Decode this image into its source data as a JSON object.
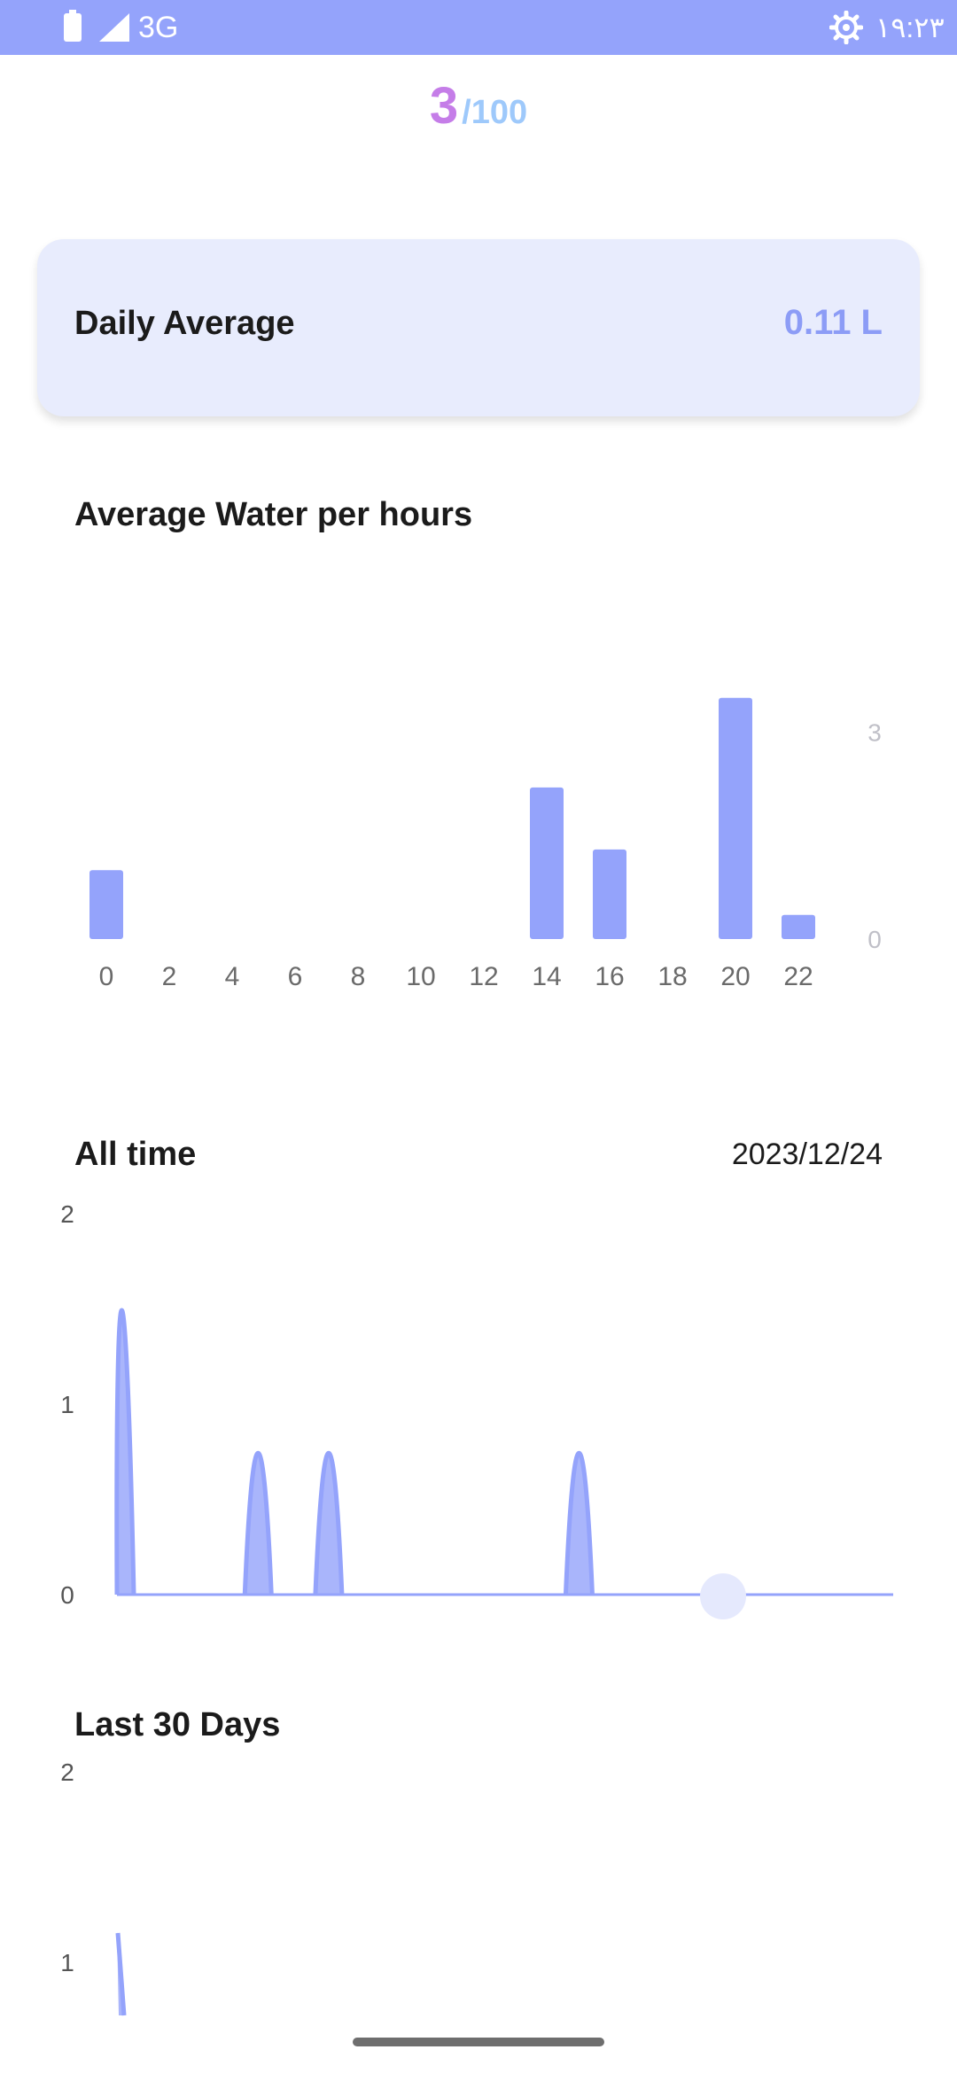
{
  "status_bar": {
    "network": "3G",
    "time": "۱۹:۲۳",
    "icons": [
      "battery-icon",
      "signal-icon",
      "settings-gear-icon"
    ]
  },
  "score": {
    "count": "3",
    "total": "/100"
  },
  "daily_average": {
    "label": "Daily Average",
    "value": "0.11 L"
  },
  "hourly": {
    "title": "Average Water per hours"
  },
  "all_time": {
    "title": "All time",
    "date": "2023/12/24"
  },
  "last30": {
    "title": "Last 30 Days"
  },
  "colors": {
    "accent": "#94a3fb",
    "fill": "#a9b5fb",
    "score": "#c57de8",
    "score_total": "#9ec9fb"
  },
  "chart_data": [
    {
      "type": "bar",
      "title": "Average Water per hours",
      "categories": [
        "0",
        "2",
        "4",
        "6",
        "8",
        "10",
        "12",
        "14",
        "16",
        "18",
        "20",
        "22"
      ],
      "values": [
        1.0,
        0,
        0,
        0,
        0,
        0,
        0,
        2.2,
        1.3,
        0,
        3.5,
        0.35
      ],
      "y_ticks": [
        "3",
        "0"
      ],
      "ylim": [
        0,
        4.5
      ],
      "grid": false
    },
    {
      "type": "area",
      "title": "All time",
      "values": [
        2,
        0,
        1,
        1,
        0,
        0,
        0,
        1,
        0,
        0,
        0,
        0
      ],
      "y_ticks": [
        "2",
        "1",
        "0"
      ],
      "ylim": [
        0,
        2
      ],
      "grid": false
    },
    {
      "type": "area",
      "title": "Last 30 Days",
      "y_ticks": [
        "2",
        "1"
      ],
      "ylim": [
        0,
        2
      ],
      "grid": false
    }
  ]
}
